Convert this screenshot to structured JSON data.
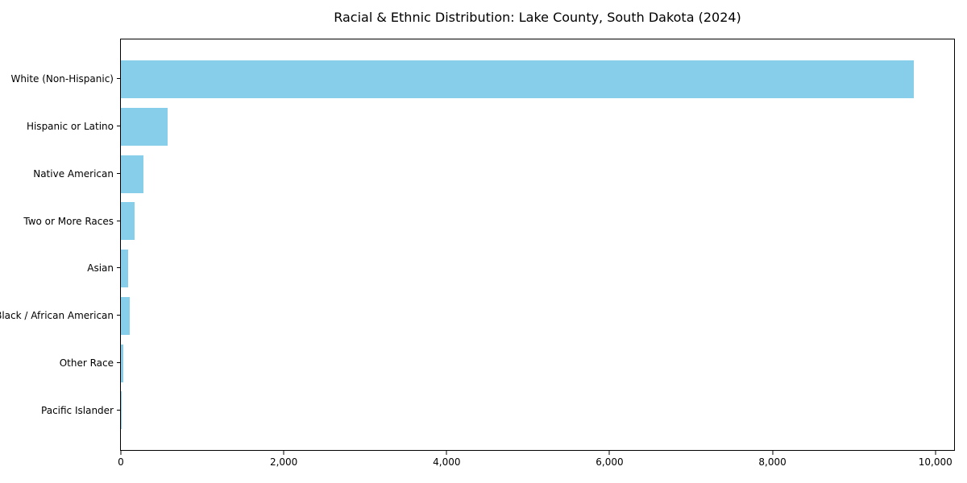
{
  "chart_data": {
    "type": "bar",
    "orientation": "horizontal",
    "title": "Racial & Ethnic Distribution: Lake County, South Dakota (2024)",
    "categories": [
      "White (Non-Hispanic)",
      "Hispanic or Latino",
      "Native American",
      "Two or More Races",
      "Asian",
      "Black / African American",
      "Other Race",
      "Pacific Islander"
    ],
    "values": [
      9740,
      573,
      276,
      168,
      89,
      104,
      30,
      8
    ],
    "bar_color": "#87CEEB",
    "xlabel": "",
    "ylabel": "",
    "xlim": [
      0,
      10230
    ],
    "x_ticks": [
      0,
      2000,
      4000,
      6000,
      8000,
      10000
    ],
    "x_tick_labels": [
      "0",
      "2,000",
      "4,000",
      "6,000",
      "8,000",
      "10,000"
    ],
    "grid": false,
    "legend_position": "none"
  }
}
